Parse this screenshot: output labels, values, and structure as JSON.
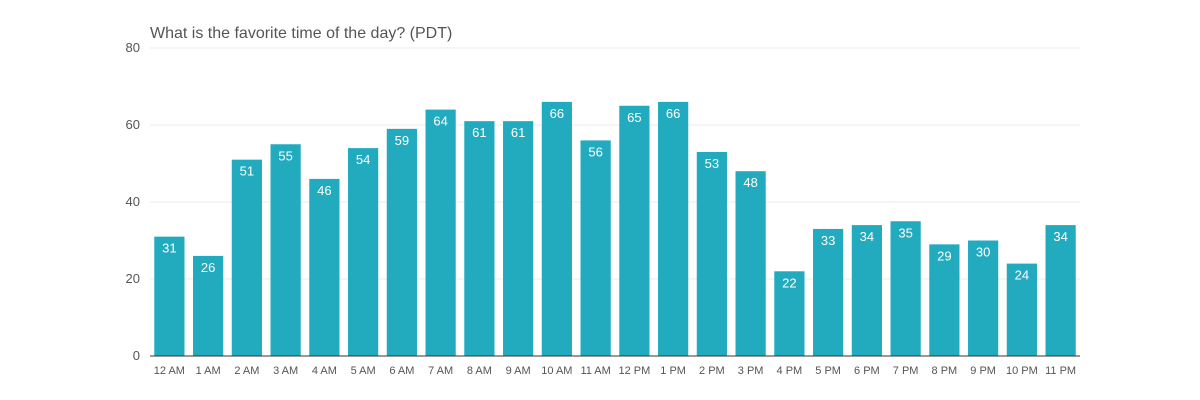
{
  "chart_data": {
    "type": "bar",
    "title": "What is the favorite time of the day? (PDT)",
    "xlabel": "",
    "ylabel": "",
    "categories": [
      "12 AM",
      "1 AM",
      "2 AM",
      "3 AM",
      "4 AM",
      "5 AM",
      "6 AM",
      "7 AM",
      "8 AM",
      "9 AM",
      "10 AM",
      "11 AM",
      "12 PM",
      "1 PM",
      "2 PM",
      "3 PM",
      "4 PM",
      "5 PM",
      "6 PM",
      "7 PM",
      "8 PM",
      "9 PM",
      "10 PM",
      "11 PM"
    ],
    "values": [
      31,
      26,
      51,
      55,
      46,
      54,
      59,
      64,
      61,
      61,
      66,
      56,
      65,
      66,
      53,
      48,
      22,
      33,
      34,
      35,
      29,
      30,
      24,
      34
    ],
    "ylim": [
      0,
      80
    ],
    "yticks": [
      0,
      20,
      40,
      60,
      80
    ],
    "grid": true,
    "bar_color": "#22abbf",
    "data_labels": true
  }
}
